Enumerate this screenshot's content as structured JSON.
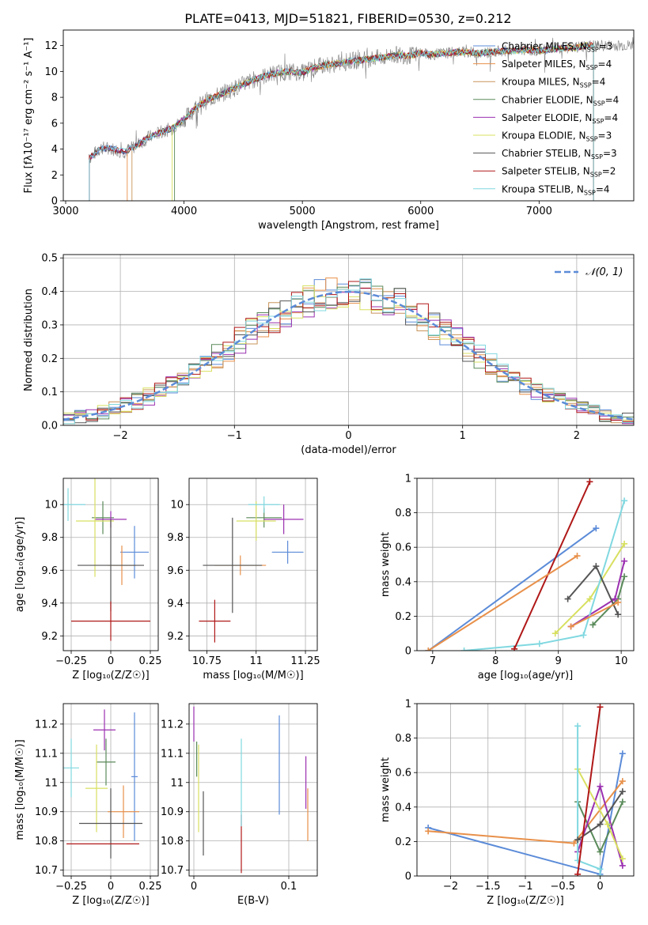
{
  "figure": {
    "title": "PLATE=0413, MJD=51821, FIBERID=0530, z=0.212"
  },
  "models": [
    {
      "name": "Chabrier MILES",
      "nssp": "3",
      "color": "#5b8bd8"
    },
    {
      "name": "Salpeter MILES",
      "nssp": "4",
      "color": "#e8904a"
    },
    {
      "name": "Kroupa MILES",
      "nssp": "4",
      "color": "#c8945a"
    },
    {
      "name": "Chabrier ELODIE",
      "nssp": "4",
      "color": "#5a8a5a"
    },
    {
      "name": "Salpeter ELODIE",
      "nssp": "4",
      "color": "#9b30b0"
    },
    {
      "name": "Kroupa ELODIE",
      "nssp": "3",
      "color": "#d8e060"
    },
    {
      "name": "Chabrier STELIB",
      "nssp": "3",
      "color": "#555555"
    },
    {
      "name": "Salpeter STELIB",
      "nssp": "2",
      "color": "#b01818"
    },
    {
      "name": "Kroupa STELIB",
      "nssp": "4",
      "color": "#80d8e0"
    }
  ],
  "legend_suffix": "N",
  "legend_sub": "SSP",
  "chart_data": [
    {
      "id": "spectrum",
      "type": "line",
      "xlabel": "wavelength [Angstrom, rest frame]",
      "ylabel": "Flux [fλ10⁻¹⁷ erg cm⁻² s⁻¹ A⁻¹]",
      "xlim": [
        2980,
        7800
      ],
      "ylim": [
        0,
        13.2
      ],
      "xticks": [
        3000,
        4000,
        5000,
        6000,
        7000
      ],
      "yticks": [
        0,
        2,
        4,
        6,
        8,
        10,
        12
      ],
      "x": [
        3200,
        3300,
        3400,
        3500,
        3600,
        3700,
        3800,
        3900,
        4000,
        4100,
        4200,
        4300,
        4400,
        4500,
        4600,
        4700,
        4800,
        4900,
        5000,
        5100,
        5200,
        5300,
        5400,
        5500,
        5600,
        5700,
        5800,
        5900,
        6000,
        6100,
        6200,
        6300,
        6400,
        6500,
        6600,
        6700,
        6800,
        6900,
        7000,
        7100,
        7200,
        7300,
        7400
      ],
      "y": [
        3.3,
        4.1,
        4.0,
        3.8,
        4.3,
        4.9,
        5.3,
        5.6,
        6.3,
        7.2,
        7.8,
        8.2,
        8.6,
        9.0,
        9.4,
        9.7,
        9.9,
        10.0,
        9.9,
        10.3,
        10.5,
        10.6,
        10.8,
        10.9,
        11.0,
        11.1,
        11.3,
        11.2,
        11.4,
        11.3,
        11.4,
        11.5,
        11.5,
        11.4,
        11.5,
        11.6,
        11.6,
        11.7,
        11.6,
        11.7,
        11.8,
        11.8,
        12.0
      ],
      "model_starts": [
        3200,
        3520,
        3560,
        3920,
        3200,
        3900,
        3200,
        3200,
        3200
      ]
    },
    {
      "id": "residuals",
      "type": "histogram",
      "xlabel": "(data-model)/error",
      "ylabel": "Normed distribution",
      "xlim": [
        -2.5,
        2.5
      ],
      "ylim": [
        0,
        0.51
      ],
      "xticks": [
        -2,
        -1,
        0,
        1,
        2
      ],
      "yticks": [
        0.0,
        0.1,
        0.2,
        0.3,
        0.4,
        0.5
      ],
      "reference_label": "𝒩(0, 1)",
      "reference_color": "#5b8bd8",
      "bin_width": 0.1
    },
    {
      "id": "age-Z",
      "type": "scatter",
      "xlabel": "Z [log₁₀(Z/Z☉)]",
      "ylabel": "age  [log₁₀(age/yr)]",
      "xlim": [
        -0.3,
        0.3
      ],
      "ylim": [
        9.11,
        10.16
      ],
      "xticks": [
        -0.25,
        0.0,
        0.25
      ],
      "yticks": [
        9.2,
        9.4,
        9.6,
        9.8,
        10.0
      ],
      "points": [
        {
          "x": 0.15,
          "y": 9.71,
          "xerr": 0.09,
          "yerr": 0.16,
          "c": 0
        },
        {
          "x": 0.07,
          "y": 9.63,
          "xerr": 0.09,
          "yerr": 0.12,
          "c": 1
        },
        {
          "x": -0.05,
          "y": 9.92,
          "xerr": 0.07,
          "yerr": 0.1,
          "c": 3
        },
        {
          "x": 0.0,
          "y": 9.91,
          "xerr": 0.1,
          "yerr": 0.05,
          "c": 4
        },
        {
          "x": -0.1,
          "y": 9.9,
          "xerr": 0.12,
          "yerr": 0.34,
          "c": 5
        },
        {
          "x": 0.0,
          "y": 9.63,
          "xerr": 0.21,
          "yerr": 0.28,
          "c": 6
        },
        {
          "x": 0.0,
          "y": 9.29,
          "xerr": 0.25,
          "yerr": 0.12,
          "c": 7
        },
        {
          "x": -0.27,
          "y": 10.0,
          "xerr": 0.11,
          "yerr": 0.1,
          "c": 8
        }
      ]
    },
    {
      "id": "age-mass",
      "type": "scatter",
      "xlabel": "mass [log₁₀(M/M☉)]",
      "ylabel": "",
      "xlim": [
        10.66,
        11.31
      ],
      "ylim": [
        9.11,
        10.16
      ],
      "xticks": [
        10.75,
        11.0,
        11.25
      ],
      "yticks": [
        9.2,
        9.4,
        9.6,
        9.8,
        10.0
      ],
      "points": [
        {
          "x": 11.16,
          "y": 9.71,
          "xerr": 0.08,
          "yerr": 0.07,
          "c": 0
        },
        {
          "x": 10.92,
          "y": 9.63,
          "xerr": 0.13,
          "yerr": 0.06,
          "c": 1
        },
        {
          "x": 11.04,
          "y": 9.92,
          "xerr": 0.09,
          "yerr": 0.06,
          "c": 3
        },
        {
          "x": 11.14,
          "y": 9.91,
          "xerr": 0.1,
          "yerr": 0.09,
          "c": 4
        },
        {
          "x": 11.0,
          "y": 9.9,
          "xerr": 0.1,
          "yerr": 0.12,
          "c": 5
        },
        {
          "x": 10.88,
          "y": 9.63,
          "xerr": 0.15,
          "yerr": 0.29,
          "c": 6
        },
        {
          "x": 10.79,
          "y": 9.29,
          "xerr": 0.08,
          "yerr": 0.13,
          "c": 7
        },
        {
          "x": 11.04,
          "y": 10.0,
          "xerr": 0.08,
          "yerr": 0.05,
          "c": 8
        }
      ]
    },
    {
      "id": "weight-age",
      "type": "line",
      "xlabel": "age  [log₁₀(age/yr)]",
      "ylabel": "mass weight",
      "xlim": [
        6.75,
        10.2
      ],
      "ylim": [
        0,
        1.0
      ],
      "xticks": [
        7,
        8,
        9,
        10
      ],
      "yticks": [
        0.0,
        0.2,
        0.4,
        0.6,
        0.8,
        1.0
      ],
      "series": [
        {
          "c": 0,
          "x": [
            6.93,
            9.6
          ],
          "y": [
            0.0,
            0.71
          ]
        },
        {
          "c": 3,
          "x": [
            9.55,
            9.95,
            10.05
          ],
          "y": [
            0.15,
            0.3,
            0.43
          ]
        },
        {
          "c": 4,
          "x": [
            9.2,
            9.9,
            10.05
          ],
          "y": [
            0.14,
            0.3,
            0.52
          ]
        },
        {
          "c": 5,
          "x": [
            8.95,
            9.5,
            10.05
          ],
          "y": [
            0.1,
            0.3,
            0.62
          ]
        },
        {
          "c": 8,
          "x": [
            7.5,
            8.7,
            9.4,
            10.05
          ],
          "y": [
            0.0,
            0.04,
            0.09,
            0.87
          ]
        },
        {
          "c": 6,
          "x": [
            9.15,
            9.6,
            9.95
          ],
          "y": [
            0.3,
            0.49,
            0.21
          ]
        },
        {
          "c": 7,
          "x": [
            8.3,
            9.5
          ],
          "y": [
            0.01,
            0.98
          ]
        },
        {
          "c": 1,
          "x": [
            6.93,
            9.3
          ],
          "y": [
            0.0,
            0.55
          ]
        },
        {
          "c": 1,
          "x": [
            9.2,
            9.95
          ],
          "y": [
            0.14,
            0.28
          ]
        }
      ]
    },
    {
      "id": "mass-Z",
      "type": "scatter",
      "xlabel": "Z [log₁₀(Z/Z☉)]",
      "ylabel": "mass [log₁₀(M/M☉)]",
      "xlim": [
        -0.3,
        0.3
      ],
      "ylim": [
        10.68,
        11.27
      ],
      "xticks": [
        -0.25,
        0.0,
        0.25
      ],
      "yticks": [
        10.7,
        10.8,
        10.9,
        11.0,
        11.1,
        11.2
      ],
      "points": [
        {
          "x": 0.15,
          "y": 11.02,
          "xerr": 0.02,
          "yerr": 0.22,
          "c": 0
        },
        {
          "x": 0.08,
          "y": 10.9,
          "xerr": 0.1,
          "yerr": 0.09,
          "c": 1
        },
        {
          "x": -0.03,
          "y": 11.07,
          "xerr": 0.06,
          "yerr": 0.08,
          "c": 3
        },
        {
          "x": -0.04,
          "y": 11.18,
          "xerr": 0.07,
          "yerr": 0.07,
          "c": 4
        },
        {
          "x": -0.09,
          "y": 10.98,
          "xerr": 0.07,
          "yerr": 0.15,
          "c": 5
        },
        {
          "x": 0.0,
          "y": 10.86,
          "xerr": 0.2,
          "yerr": 0.12,
          "c": 6
        },
        {
          "x": -0.05,
          "y": 10.79,
          "xerr": 0.23,
          "yerr": 0.0,
          "c": 7
        },
        {
          "x": -0.25,
          "y": 11.05,
          "xerr": 0.05,
          "yerr": 0.1,
          "c": 8
        }
      ]
    },
    {
      "id": "mass-EBV",
      "type": "scatter",
      "xlabel": "E(B-V)",
      "ylabel": "",
      "xlim": [
        -0.005,
        0.13
      ],
      "ylim": [
        10.68,
        11.27
      ],
      "xticks": [
        0.0,
        0.1
      ],
      "yticks": [
        10.7,
        10.8,
        10.9,
        11.0,
        11.1,
        11.2
      ],
      "points": [
        {
          "x": 0.09,
          "y": 11.06,
          "xerr": 0,
          "yerr": 0.17,
          "c": 0
        },
        {
          "x": 0.12,
          "y": 10.89,
          "xerr": 0,
          "yerr": 0.09,
          "c": 1
        },
        {
          "x": 0.003,
          "y": 11.08,
          "xerr": 0,
          "yerr": 0.06,
          "c": 3
        },
        {
          "x": 0.0,
          "y": 11.2,
          "xerr": 0,
          "yerr": 0.06,
          "c": 4
        },
        {
          "x": 0.005,
          "y": 10.98,
          "xerr": 0,
          "yerr": 0.15,
          "c": 5
        },
        {
          "x": 0.01,
          "y": 10.86,
          "xerr": 0,
          "yerr": 0.11,
          "c": 6
        },
        {
          "x": 0.05,
          "y": 10.79,
          "xerr": 0,
          "yerr": 0.1,
          "c": 7
        },
        {
          "x": 0.05,
          "y": 11.0,
          "xerr": 0,
          "yerr": 0.15,
          "c": 8
        },
        {
          "x": 0.118,
          "y": 11.0,
          "xerr": 0,
          "yerr": 0.09,
          "c": 4
        }
      ]
    },
    {
      "id": "weight-Z",
      "type": "line",
      "xlabel": "Z [log₁₀(Z/Z☉)]",
      "ylabel": "mass weight",
      "xlim": [
        -2.45,
        0.45
      ],
      "ylim": [
        0,
        1.0
      ],
      "xticks": [
        -2.0,
        -1.5,
        -1.0,
        -0.5,
        0.0
      ],
      "yticks": [
        0.0,
        0.2,
        0.4,
        0.6,
        0.8,
        1.0
      ],
      "series": [
        {
          "c": 0,
          "x": [
            -2.3,
            0.0,
            0.3
          ],
          "y": [
            0.28,
            0.01,
            0.71
          ]
        },
        {
          "c": 1,
          "x": [
            -2.3,
            -0.35,
            0.3
          ],
          "y": [
            0.26,
            0.19,
            0.55
          ]
        },
        {
          "c": 3,
          "x": [
            -0.3,
            0.0,
            0.3
          ],
          "y": [
            0.43,
            0.14,
            0.43
          ]
        },
        {
          "c": 4,
          "x": [
            -0.3,
            0.0,
            0.3
          ],
          "y": [
            0.14,
            0.52,
            0.06
          ]
        },
        {
          "c": 5,
          "x": [
            -0.3,
            0.1,
            0.3
          ],
          "y": [
            0.62,
            0.3,
            0.1
          ]
        },
        {
          "c": 8,
          "x": [
            -0.3,
            -0.3,
            0.0,
            0.0
          ],
          "y": [
            0.87,
            0.09,
            0.04,
            0.0
          ]
        },
        {
          "c": 6,
          "x": [
            -0.3,
            0.0,
            0.3
          ],
          "y": [
            0.21,
            0.3,
            0.49
          ]
        },
        {
          "c": 7,
          "x": [
            -0.3,
            0.0
          ],
          "y": [
            0.01,
            0.98
          ]
        }
      ]
    }
  ]
}
